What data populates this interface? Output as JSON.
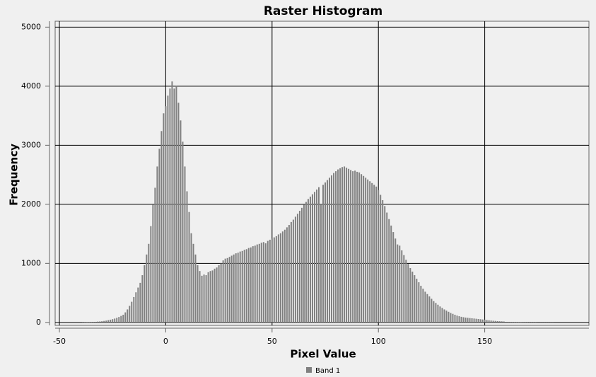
{
  "chart_data": {
    "type": "bar",
    "title": "Raster Histogram",
    "x_label": "Pixel Value",
    "y_label": "Frequency",
    "x": [
      -50,
      -49,
      -48,
      -47,
      -46,
      -45,
      -44,
      -43,
      -42,
      -41,
      -40,
      -39,
      -38,
      -37,
      -36,
      -35,
      -34,
      -33,
      -32,
      -31,
      -30,
      -29,
      -28,
      -27,
      -26,
      -25,
      -24,
      -23,
      -22,
      -21,
      -20,
      -19,
      -18,
      -17,
      -16,
      -15,
      -14,
      -13,
      -12,
      -11,
      -10,
      -9,
      -8,
      -7,
      -6,
      -5,
      -4,
      -3,
      -2,
      -1,
      0,
      1,
      2,
      3,
      4,
      5,
      6,
      7,
      8,
      9,
      10,
      11,
      12,
      13,
      14,
      15,
      16,
      17,
      18,
      19,
      20,
      21,
      22,
      23,
      24,
      25,
      26,
      27,
      28,
      29,
      30,
      31,
      32,
      33,
      34,
      35,
      36,
      37,
      38,
      39,
      40,
      41,
      42,
      43,
      44,
      45,
      46,
      47,
      48,
      49,
      50,
      51,
      52,
      53,
      54,
      55,
      56,
      57,
      58,
      59,
      60,
      61,
      62,
      63,
      64,
      65,
      66,
      67,
      68,
      69,
      70,
      71,
      72,
      73,
      74,
      75,
      76,
      77,
      78,
      79,
      80,
      81,
      82,
      83,
      84,
      85,
      86,
      87,
      88,
      89,
      90,
      91,
      92,
      93,
      94,
      95,
      96,
      97,
      98,
      99,
      100,
      101,
      102,
      103,
      104,
      105,
      106,
      107,
      108,
      109,
      110,
      111,
      112,
      113,
      114,
      115,
      116,
      117,
      118,
      119,
      120,
      121,
      122,
      123,
      124,
      125,
      126,
      127,
      128,
      129,
      130,
      131,
      132,
      133,
      134,
      135,
      136,
      137,
      138,
      139,
      140,
      141,
      142,
      143,
      144,
      145,
      146,
      147,
      148,
      149,
      150,
      151,
      152,
      153,
      154,
      155,
      156,
      157,
      158,
      159,
      160,
      161,
      162,
      163,
      164,
      165,
      166,
      167,
      168,
      169,
      170,
      171,
      172,
      173,
      174,
      175,
      176,
      177,
      178,
      179,
      180,
      181,
      182,
      183,
      184,
      185,
      186,
      187,
      188,
      189,
      190,
      191,
      192,
      193,
      194,
      195,
      196,
      197,
      198
    ],
    "series": [
      {
        "name": "Band 1",
        "color": "#808080",
        "values": [
          0,
          0,
          0,
          0,
          0,
          0,
          0,
          0,
          0,
          0,
          0,
          2,
          3,
          4,
          5,
          6,
          8,
          10,
          14,
          16,
          20,
          25,
          30,
          38,
          46,
          55,
          65,
          78,
          92,
          110,
          130,
          170,
          220,
          280,
          350,
          430,
          510,
          590,
          670,
          800,
          970,
          1150,
          1330,
          1630,
          1990,
          2280,
          2640,
          2940,
          3240,
          3540,
          3660,
          3840,
          3960,
          4080,
          3960,
          4000,
          3720,
          3420,
          3060,
          2640,
          2220,
          1870,
          1510,
          1330,
          1150,
          970,
          870,
          790,
          810,
          800,
          850,
          870,
          880,
          910,
          930,
          970,
          1000,
          1050,
          1080,
          1090,
          1110,
          1130,
          1150,
          1170,
          1180,
          1200,
          1210,
          1230,
          1240,
          1260,
          1270,
          1290,
          1300,
          1320,
          1330,
          1350,
          1360,
          1340,
          1380,
          1400,
          1420,
          1440,
          1460,
          1490,
          1510,
          1540,
          1570,
          1610,
          1650,
          1700,
          1740,
          1790,
          1840,
          1890,
          1940,
          1990,
          2040,
          2090,
          2130,
          2170,
          2210,
          2250,
          2290,
          2000,
          2330,
          2370,
          2410,
          2450,
          2490,
          2530,
          2560,
          2590,
          2610,
          2630,
          2640,
          2620,
          2600,
          2580,
          2560,
          2570,
          2550,
          2540,
          2510,
          2480,
          2450,
          2420,
          2390,
          2360,
          2330,
          2300,
          2240,
          2160,
          2070,
          1970,
          1860,
          1750,
          1640,
          1530,
          1420,
          1320,
          1300,
          1220,
          1140,
          1060,
          990,
          920,
          860,
          800,
          740,
          680,
          620,
          570,
          520,
          480,
          440,
          400,
          360,
          330,
          300,
          270,
          245,
          220,
          200,
          180,
          160,
          145,
          130,
          115,
          105,
          95,
          88,
          82,
          78,
          74,
          70,
          66,
          62,
          58,
          54,
          50,
          45,
          40,
          36,
          32,
          28,
          25,
          22,
          20,
          18,
          16,
          9,
          8,
          7,
          6,
          5,
          5,
          4,
          4,
          3,
          3,
          3,
          2,
          2,
          2,
          2,
          1,
          1,
          1,
          1,
          1,
          1,
          1,
          1,
          0,
          0,
          0,
          0,
          0,
          0,
          0,
          0,
          0,
          0,
          0,
          0,
          0,
          0,
          0,
          0
        ]
      }
    ],
    "xlim": [
      -52,
      199
    ],
    "xticks": [
      -50,
      0,
      50,
      100,
      150
    ],
    "ylim": [
      -50,
      5100
    ],
    "yticks": [
      0,
      1000,
      2000,
      3000,
      4000,
      5000
    ],
    "grid": true
  }
}
